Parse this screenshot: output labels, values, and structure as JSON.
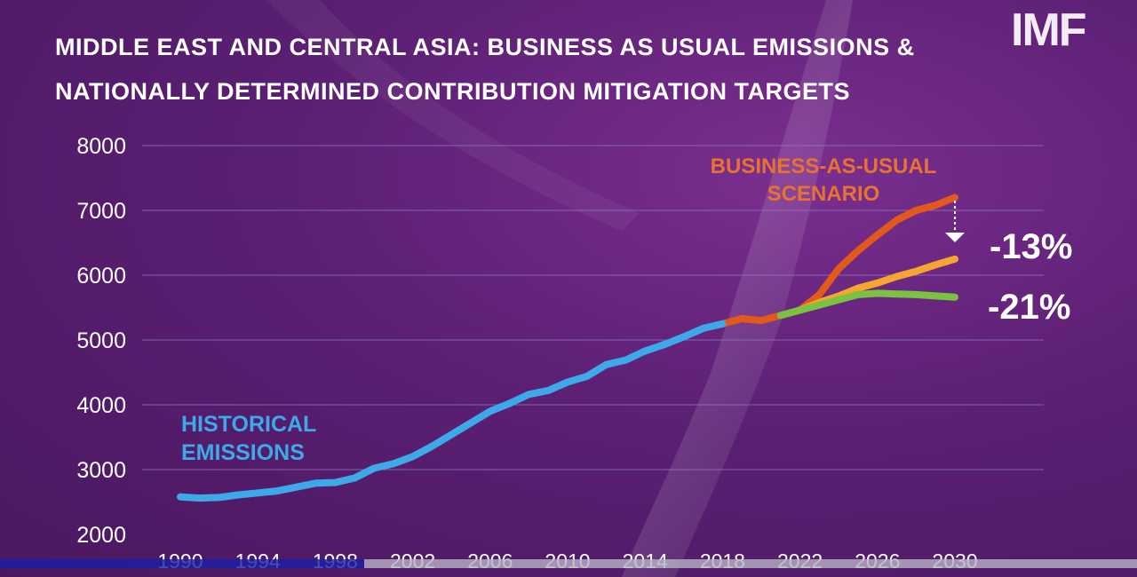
{
  "logo": "IMF",
  "title_lines": [
    "MIDDLE EAST AND CENTRAL ASIA: BUSINESS AS USUAL EMISSIONS &",
    "NATIONALLY DETERMINED CONTRIBUTION MITIGATION TARGETS"
  ],
  "video_progress": 0.32,
  "colors": {
    "historical": "#3ea9e8",
    "bau": "#e05a1c",
    "ndc_13": "#f4a630",
    "ndc_21": "#7cc242",
    "grid": "#8f78c8",
    "axis_text": "#ffffff"
  },
  "chart_data": {
    "type": "line",
    "title": "MIDDLE EAST AND CENTRAL ASIA: BUSINESS AS USUAL EMISSIONS & NATIONALLY DETERMINED CONTRIBUTION MITIGATION TARGETS",
    "xlabel": "",
    "ylabel": "",
    "ylim": [
      2000,
      8000
    ],
    "xlim": [
      1990,
      2030
    ],
    "yticks": [
      2000,
      3000,
      4000,
      5000,
      6000,
      7000,
      8000
    ],
    "xticks": [
      1990,
      1994,
      1998,
      2002,
      2006,
      2010,
      2014,
      2018,
      2022,
      2026,
      2030
    ],
    "grid": true,
    "series": [
      {
        "name": "HISTORICAL EMISSIONS",
        "color_key": "historical",
        "x": [
          1990,
          1991,
          1992,
          1993,
          1994,
          1995,
          1996,
          1997,
          1998,
          1999,
          2000,
          2001,
          2002,
          2003,
          2004,
          2005,
          2006,
          2007,
          2008,
          2009,
          2010,
          2011,
          2012,
          2013,
          2014,
          2015,
          2016,
          2017,
          2018
        ],
        "y": [
          2580,
          2560,
          2570,
          2610,
          2640,
          2670,
          2730,
          2790,
          2800,
          2870,
          3020,
          3090,
          3200,
          3360,
          3540,
          3720,
          3900,
          4020,
          4160,
          4220,
          4350,
          4440,
          4620,
          4690,
          4830,
          4930,
          5050,
          5180,
          5250
        ]
      },
      {
        "name": "BUSINESS-AS-USUAL SCENARIO",
        "color_key": "bau",
        "x": [
          2018,
          2019,
          2020,
          2021,
          2022,
          2023,
          2024,
          2025,
          2026,
          2027,
          2028,
          2029,
          2030
        ],
        "y": [
          5250,
          5330,
          5300,
          5380,
          5460,
          5700,
          6100,
          6380,
          6620,
          6850,
          7000,
          7080,
          7200
        ]
      },
      {
        "name": "",
        "color_key": "ndc_13",
        "x": [
          2022,
          2023,
          2024,
          2025,
          2026,
          2027,
          2028,
          2029,
          2030
        ],
        "y": [
          5460,
          5580,
          5680,
          5800,
          5880,
          5980,
          6060,
          6160,
          6250
        ]
      },
      {
        "name": "",
        "color_key": "ndc_21",
        "x": [
          2021,
          2022,
          2023,
          2024,
          2025,
          2026,
          2027,
          2028,
          2029,
          2030
        ],
        "y": [
          5380,
          5460,
          5540,
          5620,
          5700,
          5720,
          5710,
          5700,
          5680,
          5660
        ]
      }
    ],
    "annotations": [
      {
        "text": "HISTORICAL",
        "color_key": "historical"
      },
      {
        "text": "EMISSIONS",
        "color_key": "historical"
      },
      {
        "text": "BUSINESS-AS-USUAL",
        "color_key": "bau"
      },
      {
        "text": "SCENARIO",
        "color_key": "bau"
      },
      {
        "text": "-13%",
        "color_key": "axis_text"
      },
      {
        "text": "-21%",
        "color_key": "axis_text"
      }
    ]
  }
}
